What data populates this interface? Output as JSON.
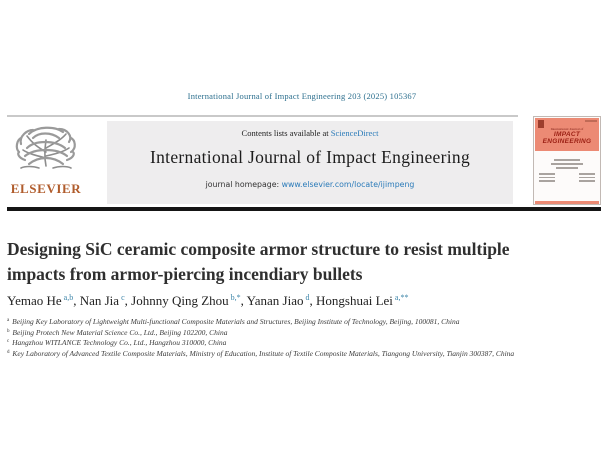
{
  "page": {
    "citation_line": "International Journal of Impact Engineering 203 (2025) 105367"
  },
  "banner": {
    "contents_prefix": "Contents lists available at ",
    "sciencedirect_label": "ScienceDirect",
    "journal_title": "International Journal of Impact Engineering",
    "homepage_prefix": "journal homepage: ",
    "homepage_url": "www.elsevier.com/locate/ijimpeng"
  },
  "logos": {
    "elsevier_wordmark": "ELSEVIER"
  },
  "cover": {
    "title_small": "International Journal of",
    "title_line1": "IMPACT",
    "title_line2": "ENGINEERING"
  },
  "article": {
    "title": "Designing SiC ceramic composite armor structure to resist multiple impacts from armor-piercing incendiary bullets",
    "authors": [
      {
        "name": "Yemao He",
        "sup": "a,b"
      },
      {
        "name": "Nan Jia",
        "sup": "c"
      },
      {
        "name": "Johnny Qing Zhou",
        "sup": "b,*"
      },
      {
        "name": "Yanan Jiao",
        "sup": "d"
      },
      {
        "name": "Hongshuai Lei",
        "sup": "a,**"
      }
    ],
    "affiliations": [
      {
        "sup": "a",
        "text": "Beijing Key Laboratory of Lightweight Multi-functional Composite Materials and Structures, Beijing Institute of Technology, Beijing, 100081, China"
      },
      {
        "sup": "b",
        "text": "Beijing Protech New Material Science Co., Ltd., Beijing 102200, China"
      },
      {
        "sup": "c",
        "text": "Hangzhou WITLANCE Technology Co., Ltd., Hangzhou 310000, China"
      },
      {
        "sup": "d",
        "text": "Key Laboratory of Advanced Textile Composite Materials, Ministry of Education, Institute of Textile Composite Materials, Tiangong University, Tianjin 300387, China"
      }
    ]
  },
  "colors": {
    "citation_teal": "#2c6f8e",
    "link_blue": "#2b7bb9",
    "banner_gray": "#eeedee",
    "elsevier_orange": "#b05c2c",
    "cover_salmon": "#ec8a74",
    "cover_dark_red": "#9c2014",
    "black_bar": "#151515"
  }
}
